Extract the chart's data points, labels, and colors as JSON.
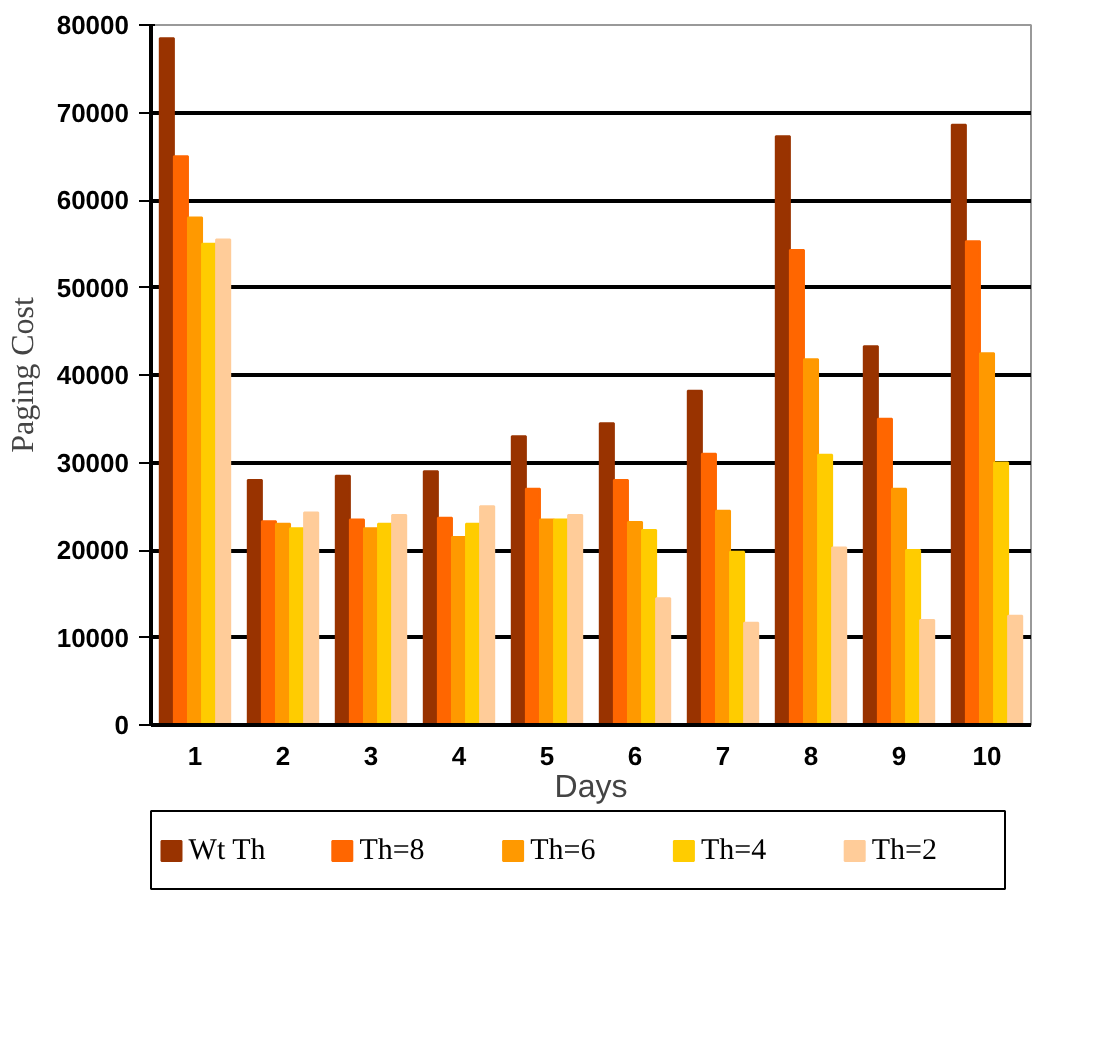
{
  "chart_data": {
    "type": "bar",
    "xlabel": "Days",
    "ylabel": "Paging Cost",
    "categories": [
      "1",
      "2",
      "3",
      "4",
      "5",
      "6",
      "7",
      "8",
      "9",
      "10"
    ],
    "series": [
      {
        "name": "Wt Th",
        "color": "#993300",
        "values": [
          78500,
          28000,
          28500,
          29000,
          33000,
          34500,
          38200,
          67300,
          43300,
          68600
        ]
      },
      {
        "name": "Th=8",
        "color": "#ff6600",
        "values": [
          65000,
          23300,
          23500,
          23700,
          27000,
          28000,
          31000,
          54300,
          35000,
          55300
        ]
      },
      {
        "name": "Th=6",
        "color": "#ff9900",
        "values": [
          58000,
          23000,
          22500,
          21500,
          23500,
          23200,
          24500,
          41800,
          27000,
          42500
        ]
      },
      {
        "name": "Th=4",
        "color": "#ffcc00",
        "values": [
          55000,
          22500,
          23000,
          23000,
          23500,
          22300,
          19800,
          30900,
          20000,
          30000
        ]
      },
      {
        "name": "Th=2",
        "color": "#ffcc99",
        "values": [
          55500,
          24300,
          24000,
          25000,
          24000,
          14500,
          11700,
          20300,
          12000,
          12500
        ]
      }
    ],
    "ylim": [
      0,
      80000
    ],
    "yticks": [
      0,
      10000,
      20000,
      30000,
      40000,
      50000,
      60000,
      70000,
      80000
    ],
    "grid": "y",
    "legend": "bottom"
  }
}
